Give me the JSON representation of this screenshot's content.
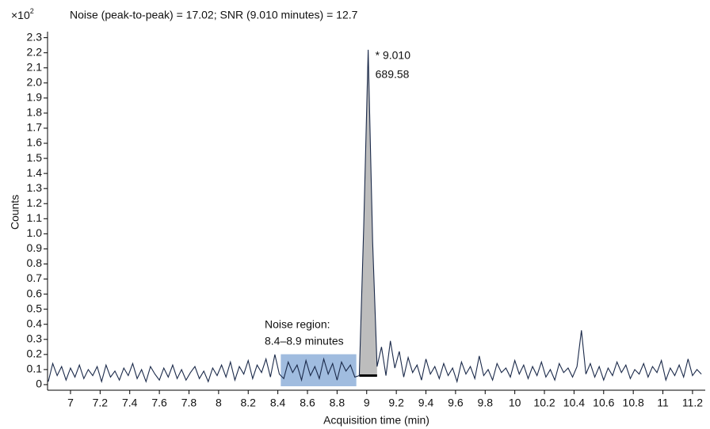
{
  "chart_data": {
    "type": "line",
    "title": "Noise (peak-to-peak) = 17.02; SNR (9.010 minutes) = 12.7",
    "y_scale_label": "×10",
    "y_scale_exponent": "2",
    "xlabel": "Acquisition time (min)",
    "ylabel": "Counts",
    "peak_annotation": [
      "* 9.010",
      "689.58"
    ],
    "noise_annotation": [
      "Noise region:",
      "8.4–8.9 minutes"
    ],
    "noise_region_x": [
      8.42,
      8.93
    ],
    "noise_region_color": "#8fb0d9",
    "peak_fill_color": "#bdbdbd",
    "x": [
      6.85,
      6.88,
      6.91,
      6.94,
      6.97,
      7,
      7.03,
      7.06,
      7.09,
      7.12,
      7.15,
      7.18,
      7.21,
      7.24,
      7.27,
      7.3,
      7.33,
      7.36,
      7.39,
      7.42,
      7.45,
      7.48,
      7.51,
      7.54,
      7.57,
      7.6,
      7.63,
      7.66,
      7.69,
      7.72,
      7.75,
      7.78,
      7.81,
      7.84,
      7.87,
      7.9,
      7.93,
      7.96,
      7.99,
      8.02,
      8.05,
      8.08,
      8.11,
      8.14,
      8.17,
      8.2,
      8.23,
      8.26,
      8.29,
      8.32,
      8.35,
      8.38,
      8.41,
      8.44,
      8.47,
      8.5,
      8.53,
      8.56,
      8.59,
      8.62,
      8.65,
      8.68,
      8.71,
      8.74,
      8.77,
      8.8,
      8.83,
      8.86,
      8.89,
      8.92,
      8.95,
      8.98,
      9.01,
      9.04,
      9.07,
      9.1,
      9.13,
      9.16,
      9.19,
      9.22,
      9.25,
      9.28,
      9.31,
      9.34,
      9.37,
      9.4,
      9.43,
      9.46,
      9.49,
      9.52,
      9.55,
      9.58,
      9.61,
      9.64,
      9.67,
      9.7,
      9.73,
      9.76,
      9.79,
      9.82,
      9.85,
      9.88,
      9.91,
      9.94,
      9.97,
      10,
      10.03,
      10.06,
      10.09,
      10.12,
      10.15,
      10.18,
      10.21,
      10.24,
      10.27,
      10.3,
      10.33,
      10.36,
      10.39,
      10.42,
      10.45,
      10.48,
      10.51,
      10.54,
      10.57,
      10.6,
      10.63,
      10.66,
      10.69,
      10.72,
      10.75,
      10.78,
      10.81,
      10.84,
      10.87,
      10.9,
      10.93,
      10.96,
      10.99,
      11.02,
      11.05,
      11.08,
      11.11,
      11.14,
      11.17,
      11.2,
      11.23,
      11.26
    ],
    "series": [
      {
        "color": "#1b2a4a",
        "values": [
          0.02,
          0.14,
          0.06,
          0.12,
          0.03,
          0.11,
          0.05,
          0.13,
          0.04,
          0.1,
          0.06,
          0.12,
          0.02,
          0.13,
          0.05,
          0.09,
          0.03,
          0.11,
          0.06,
          0.14,
          0.04,
          0.1,
          0.02,
          0.12,
          0.07,
          0.03,
          0.11,
          0.05,
          0.13,
          0.04,
          0.1,
          0.03,
          0.08,
          0.12,
          0.04,
          0.09,
          0.02,
          0.11,
          0.06,
          0.13,
          0.05,
          0.15,
          0.03,
          0.12,
          0.07,
          0.16,
          0.04,
          0.13,
          0.08,
          0.17,
          0.05,
          0.2,
          0.07,
          0.04,
          0.15,
          0.08,
          0.13,
          0.03,
          0.16,
          0.06,
          0.12,
          0.04,
          0.17,
          0.07,
          0.14,
          0.03,
          0.15,
          0.09,
          0.13,
          0.05,
          0.06,
          1.05,
          2.22,
          0.95,
          0.12,
          0.25,
          0.06,
          0.29,
          0.11,
          0.22,
          0.05,
          0.18,
          0.08,
          0.13,
          0.03,
          0.17,
          0.07,
          0.12,
          0.04,
          0.14,
          0.06,
          0.11,
          0.02,
          0.15,
          0.07,
          0.12,
          0.04,
          0.19,
          0.06,
          0.1,
          0.03,
          0.14,
          0.08,
          0.11,
          0.05,
          0.16,
          0.07,
          0.13,
          0.04,
          0.12,
          0.06,
          0.15,
          0.05,
          0.1,
          0.03,
          0.14,
          0.08,
          0.11,
          0.05,
          0.12,
          0.36,
          0.07,
          0.14,
          0.05,
          0.12,
          0.03,
          0.11,
          0.06,
          0.15,
          0.08,
          0.13,
          0.04,
          0.1,
          0.07,
          0.14,
          0.05,
          0.12,
          0.08,
          0.16,
          0.03,
          0.11,
          0.06,
          0.13,
          0.05,
          0.17,
          0.06,
          0.1,
          0.07
        ]
      }
    ],
    "xlim": [
      6.845,
      11.286
    ],
    "xticks": [
      7,
      7.2,
      7.4,
      7.6,
      7.8,
      8,
      8.2,
      8.4,
      8.6,
      8.8,
      9,
      9.2,
      9.4,
      9.6,
      9.8,
      10,
      10.2,
      10.4,
      10.6,
      10.8,
      11,
      11.2
    ],
    "ylim": [
      -0.037,
      2.34
    ],
    "yticks": [
      0,
      0.1,
      0.2,
      0.3,
      0.4,
      0.5,
      0.6,
      0.7,
      0.8,
      0.9,
      {
        "value": 1,
        "label": "1.0"
      },
      1.1,
      1.2,
      1.3,
      1.4,
      1.5,
      1.6,
      1.7,
      1.8,
      1.9,
      {
        "value": 2,
        "label": "2.0"
      },
      2.1,
      2.2,
      2.3
    ],
    "grid": false
  }
}
